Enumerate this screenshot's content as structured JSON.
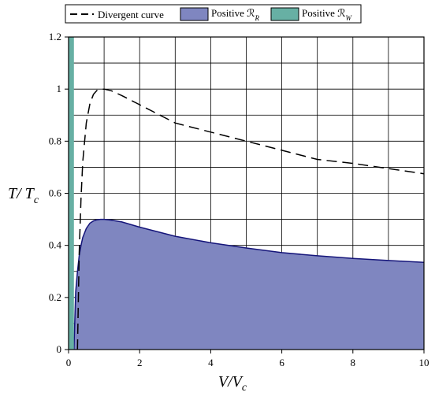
{
  "chart_data": {
    "type": "area",
    "xlabel": {
      "main": "V/V",
      "sub": "c"
    },
    "ylabel": {
      "main": "T/ T",
      "sub": "c"
    },
    "xlim": [
      0,
      10
    ],
    "ylim": [
      0,
      1.2
    ],
    "x_ticks": [
      "0",
      "2",
      "4",
      "6",
      "8",
      "10"
    ],
    "y_ticks": [
      "0",
      "0.2",
      "0.4",
      "0.6",
      "0.8",
      "1",
      "1.2"
    ],
    "grid": true,
    "legend_position": "top",
    "legend": [
      {
        "label": "Divergent curve",
        "sub": "",
        "kind": "dashed-line",
        "color": "#000000"
      },
      {
        "label": "Positive ℛ",
        "sub": "R",
        "kind": "patch",
        "color": "#7f86c0"
      },
      {
        "label": "Positive ℛ",
        "sub": "W",
        "kind": "patch",
        "color": "#67b0a4"
      }
    ],
    "series": [
      {
        "name": "Divergent curve",
        "style": "dashed",
        "color": "#000000",
        "x": [
          0.25,
          0.3,
          0.35,
          0.4,
          0.5,
          0.6,
          0.7,
          0.8,
          0.9,
          1.0,
          1.2,
          1.5,
          2.0,
          3.0,
          4.0,
          5.0,
          6.0,
          7.0,
          8.0,
          9.0,
          10.0
        ],
        "y": [
          0.0,
          0.37,
          0.58,
          0.72,
          0.87,
          0.944,
          0.98,
          0.995,
          0.999,
          1.0,
          0.994,
          0.975,
          0.94,
          0.87,
          0.835,
          0.8,
          0.765,
          0.73,
          0.715,
          0.695,
          0.675
        ]
      },
      {
        "name": "Positive ℛR",
        "style": "filled-area",
        "color": "#7f86c0",
        "edge": "#15157a",
        "x": [
          0.15,
          0.2,
          0.25,
          0.3,
          0.35,
          0.4,
          0.5,
          0.6,
          0.7,
          0.8,
          0.9,
          1.0,
          1.2,
          1.5,
          2.0,
          3.0,
          4.0,
          5.0,
          6.0,
          7.0,
          8.0,
          9.0,
          10.0
        ],
        "y": [
          0.0,
          0.22,
          0.3,
          0.36,
          0.4,
          0.43,
          0.465,
          0.485,
          0.494,
          0.498,
          0.5,
          0.5,
          0.497,
          0.49,
          0.47,
          0.435,
          0.41,
          0.39,
          0.372,
          0.36,
          0.35,
          0.342,
          0.335
        ]
      },
      {
        "name": "Positive ℛW",
        "style": "filled-area",
        "color": "#67b0a4",
        "x": [
          0.0,
          0.15
        ],
        "y": [
          1.2,
          1.2
        ]
      }
    ]
  }
}
